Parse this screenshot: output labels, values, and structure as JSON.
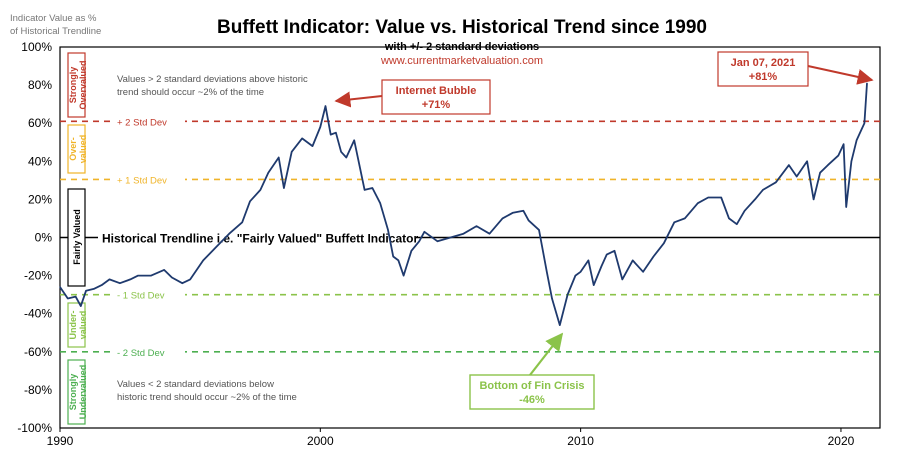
{
  "header": {
    "title": "Buffett Indicator: Value vs. Historical Trend since 1990",
    "subtitle": "with +/- 2 standard deviations",
    "website": "www.currentmarketvaluation.com",
    "ylabel_line1": "Indicator Value as %",
    "ylabel_line2": "of Historical Trendline"
  },
  "colors": {
    "line": "#1f3a6e",
    "strong_over": "#c0392b",
    "over": "#f0b429",
    "fair": "#000000",
    "under": "#8bc34a",
    "strong_under": "#4caf50",
    "fin_crisis": "#8bc34a"
  },
  "zones": {
    "strong_over": "Strongly Overvalued",
    "over": "Over-valued",
    "fair": "Fairly Valued",
    "under": "Under-valued",
    "strong_under": "Strongly Undervalued"
  },
  "bands": {
    "plus2": "+ 2 Std Dev",
    "plus1": "+ 1 Std Dev",
    "minus1": "- 1 Std Dev",
    "minus2": "- 2 Std Dev",
    "trend": "Historical Trendline i.e. \"Fairly Valued\" Buffett Indicator"
  },
  "notes": {
    "top_line1": "Values > 2 standard deviations above historic",
    "top_line2": "trend should occur ~2% of the time",
    "bottom_line1": "Values < 2 standard deviations below",
    "bottom_line2": "historic trend should occur ~2% of the time"
  },
  "callouts": {
    "bubble_line1": "Internet Bubble",
    "bubble_line2": "+71%",
    "jan_line1": "Jan 07, 2021",
    "jan_line2": "+81%",
    "crisis_line1": "Bottom of Fin Crisis",
    "crisis_line2": "-46%"
  },
  "chart_data": {
    "type": "line",
    "title": "Buffett Indicator: Value vs. Historical Trend since 1990",
    "subtitle": "with +/- 2 standard deviations",
    "ylabel": "Indicator Value as % of Historical Trendline",
    "xlim": [
      1990,
      2021.5
    ],
    "ylim": [
      -100,
      100
    ],
    "x_ticks": [
      1990,
      2000,
      2010,
      2020
    ],
    "y_ticks": [
      -100,
      -80,
      -60,
      -40,
      -20,
      0,
      20,
      40,
      60,
      80,
      100
    ],
    "y_tick_labels": [
      "-100%",
      "-80%",
      "-60%",
      "-40%",
      "-20%",
      "0%",
      "20%",
      "40%",
      "60%",
      "80%",
      "100%"
    ],
    "reference_lines": [
      {
        "name": "+ 2 Std Dev",
        "y": 61
      },
      {
        "name": "+ 1 Std Dev",
        "y": 30.5
      },
      {
        "name": "Historical Trendline",
        "y": 0
      },
      {
        "name": "- 1 Std Dev",
        "y": -30
      },
      {
        "name": "- 2 Std Dev",
        "y": -60
      }
    ],
    "grid": false,
    "series": [
      {
        "values": [
          [
            1990.0,
            -26
          ],
          [
            1990.3,
            -32
          ],
          [
            1990.6,
            -31
          ],
          [
            1990.8,
            -36
          ],
          [
            1991.0,
            -28
          ],
          [
            1991.3,
            -27
          ],
          [
            1991.6,
            -25
          ],
          [
            1991.9,
            -22
          ],
          [
            1992.3,
            -24
          ],
          [
            1992.7,
            -22
          ],
          [
            1993.0,
            -20
          ],
          [
            1993.5,
            -20
          ],
          [
            1994.0,
            -17
          ],
          [
            1994.3,
            -21
          ],
          [
            1994.7,
            -24
          ],
          [
            1995.0,
            -22
          ],
          [
            1995.5,
            -12
          ],
          [
            1996.0,
            -5
          ],
          [
            1996.5,
            2
          ],
          [
            1997.0,
            8
          ],
          [
            1997.3,
            19
          ],
          [
            1997.7,
            25
          ],
          [
            1998.0,
            34
          ],
          [
            1998.4,
            42
          ],
          [
            1998.6,
            26
          ],
          [
            1998.9,
            45
          ],
          [
            1999.3,
            52
          ],
          [
            1999.7,
            48
          ],
          [
            2000.0,
            58
          ],
          [
            2000.2,
            69
          ],
          [
            2000.4,
            54
          ],
          [
            2000.6,
            55
          ],
          [
            2000.8,
            45
          ],
          [
            2001.0,
            42
          ],
          [
            2001.3,
            51
          ],
          [
            2001.5,
            38
          ],
          [
            2001.7,
            25
          ],
          [
            2002.0,
            26
          ],
          [
            2002.3,
            18
          ],
          [
            2002.6,
            4
          ],
          [
            2002.8,
            -10
          ],
          [
            2003.0,
            -12
          ],
          [
            2003.2,
            -20
          ],
          [
            2003.5,
            -7
          ],
          [
            2003.8,
            -2
          ],
          [
            2004.0,
            3
          ],
          [
            2004.5,
            -2
          ],
          [
            2005.0,
            0
          ],
          [
            2005.5,
            2
          ],
          [
            2006.0,
            6
          ],
          [
            2006.5,
            2
          ],
          [
            2007.0,
            10
          ],
          [
            2007.4,
            13
          ],
          [
            2007.8,
            14
          ],
          [
            2008.0,
            9
          ],
          [
            2008.4,
            4
          ],
          [
            2008.7,
            -18
          ],
          [
            2008.9,
            -32
          ],
          [
            2009.2,
            -46
          ],
          [
            2009.5,
            -30
          ],
          [
            2009.8,
            -20
          ],
          [
            2010.0,
            -18
          ],
          [
            2010.3,
            -12
          ],
          [
            2010.5,
            -25
          ],
          [
            2010.8,
            -15
          ],
          [
            2011.0,
            -9
          ],
          [
            2011.3,
            -7
          ],
          [
            2011.6,
            -22
          ],
          [
            2012.0,
            -12
          ],
          [
            2012.4,
            -18
          ],
          [
            2012.8,
            -10
          ],
          [
            2013.2,
            -3
          ],
          [
            2013.6,
            8
          ],
          [
            2014.0,
            10
          ],
          [
            2014.5,
            18
          ],
          [
            2014.9,
            21
          ],
          [
            2015.4,
            21
          ],
          [
            2015.7,
            10
          ],
          [
            2016.0,
            7
          ],
          [
            2016.3,
            14
          ],
          [
            2016.7,
            20
          ],
          [
            2017.0,
            25
          ],
          [
            2017.5,
            29
          ],
          [
            2018.0,
            38
          ],
          [
            2018.3,
            32
          ],
          [
            2018.7,
            40
          ],
          [
            2018.95,
            20
          ],
          [
            2019.2,
            34
          ],
          [
            2019.5,
            38
          ],
          [
            2019.9,
            43
          ],
          [
            2020.1,
            49
          ],
          [
            2020.2,
            16
          ],
          [
            2020.4,
            40
          ],
          [
            2020.6,
            51
          ],
          [
            2020.8,
            57
          ],
          [
            2020.9,
            60
          ],
          [
            2021.0,
            81
          ]
        ]
      }
    ],
    "annotations": [
      {
        "text": "Internet Bubble +71%",
        "x": 2000.2,
        "y": 71
      },
      {
        "text": "Jan 07, 2021 +81%",
        "x": 2021.0,
        "y": 81
      },
      {
        "text": "Bottom of Fin Crisis -46%",
        "x": 2009.2,
        "y": -46
      }
    ]
  }
}
